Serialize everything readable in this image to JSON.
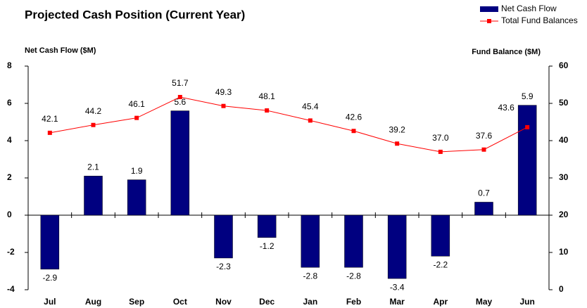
{
  "chart_data": {
    "type": "bar",
    "title": "Projected Cash Position (Current Year)",
    "y_label": "Net Cash Flow ($M)",
    "y2_label": "Fund Balance ($M)",
    "categories": [
      "Jul",
      "Aug",
      "Sep",
      "Oct",
      "Nov",
      "Dec",
      "Jan",
      "Feb",
      "Mar",
      "Apr",
      "May",
      "Jun"
    ],
    "series": [
      {
        "name": "Net Cash Flow",
        "type": "bar",
        "color": "#000080",
        "axis": "y",
        "values": [
          -2.9,
          2.1,
          1.9,
          5.6,
          -2.3,
          -1.2,
          -2.8,
          -2.8,
          -3.4,
          -2.2,
          0.7,
          5.9
        ]
      },
      {
        "name": "Total Fund Balances",
        "type": "line",
        "color": "#ff0000",
        "axis": "y2",
        "values": [
          42.1,
          44.2,
          46.1,
          51.7,
          49.3,
          48.1,
          45.4,
          42.6,
          39.2,
          37.0,
          37.6,
          43.6
        ],
        "value_labels": [
          "42.1",
          "44.2",
          "46.1",
          "51.7",
          "49.3",
          "48.1",
          "45.4",
          "42.6",
          "39.2",
          "37.0",
          "37.6",
          "43.6"
        ]
      }
    ],
    "ylim": [
      -4,
      8
    ],
    "yticks": [
      -4,
      -2,
      0,
      2,
      4,
      6,
      8
    ],
    "y2lim": [
      0,
      60
    ],
    "y2ticks": [
      0,
      10,
      20,
      30,
      40,
      50,
      60
    ],
    "legend": "top-right"
  }
}
